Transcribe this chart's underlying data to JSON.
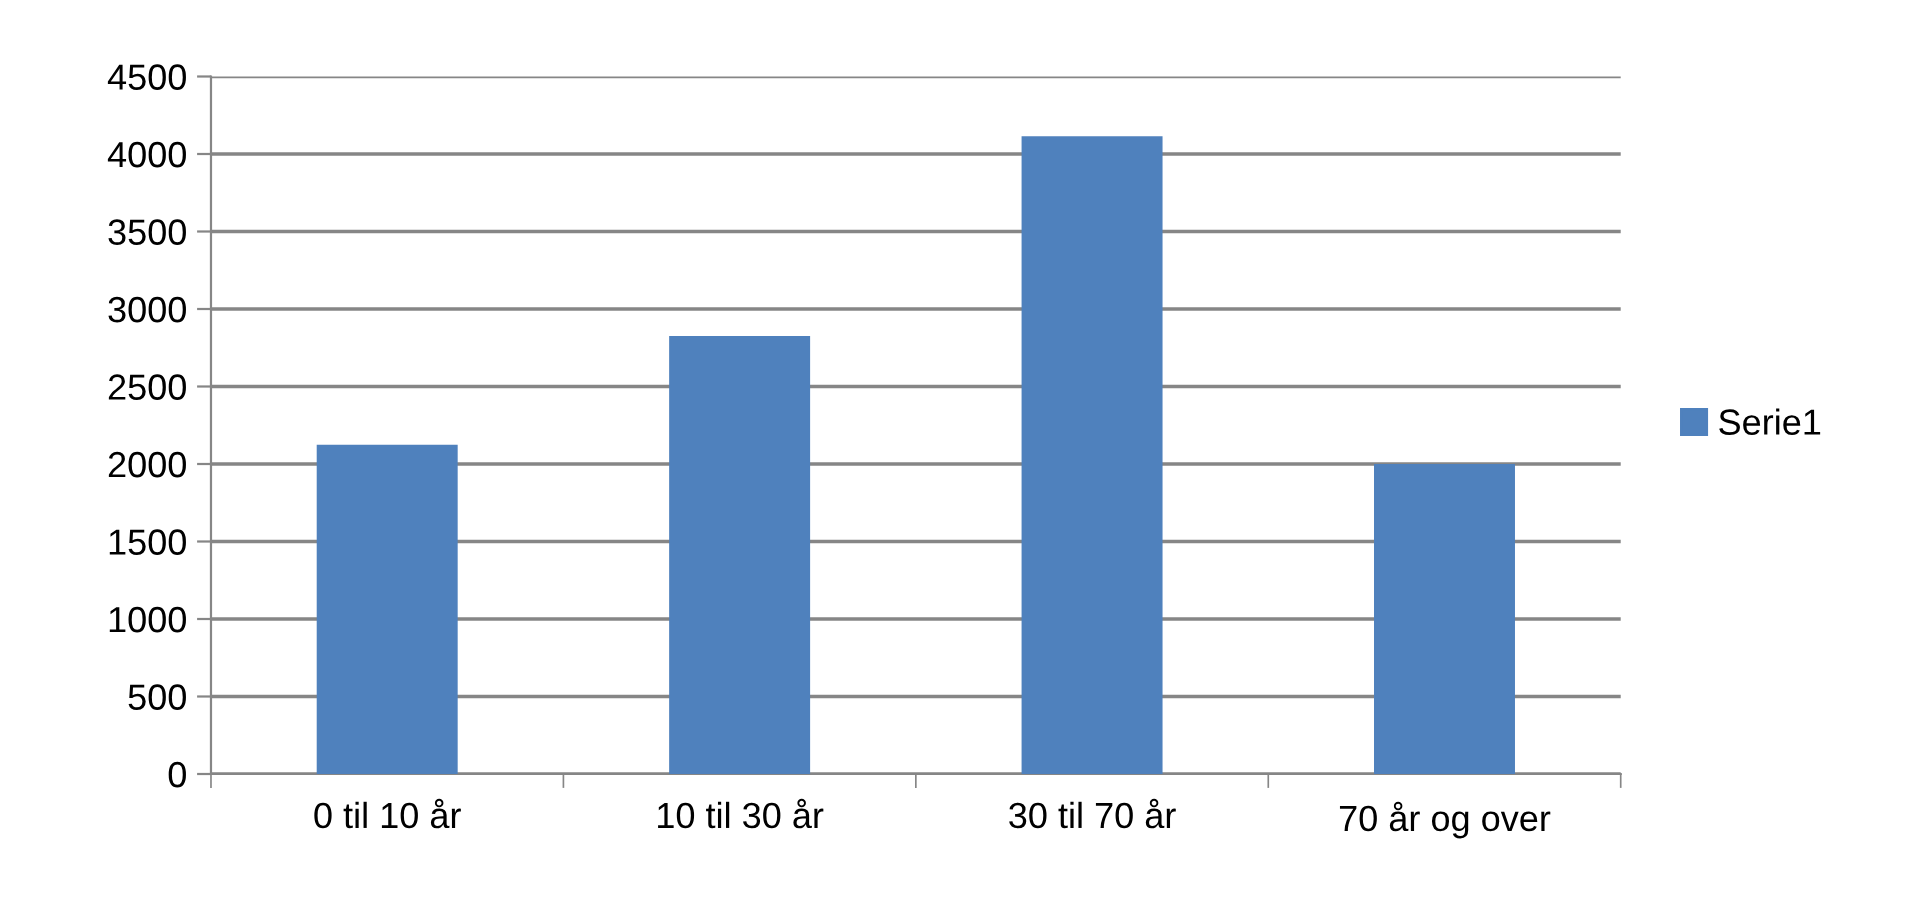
{
  "chart_data": {
    "type": "bar",
    "categories": [
      "0 til 10 år",
      "10 til 30 år",
      "30 til 70 år",
      "70 år og over"
    ],
    "series": [
      {
        "name": "Serie1",
        "color": "#4f81bd",
        "values": [
          2125,
          2825,
          4115,
          2000
        ]
      }
    ],
    "ylim": [
      0,
      4500
    ],
    "yticks": [
      0,
      500,
      1000,
      1500,
      2000,
      2500,
      3000,
      3500,
      4000,
      4500
    ],
    "grid": "y",
    "legend": "right"
  }
}
